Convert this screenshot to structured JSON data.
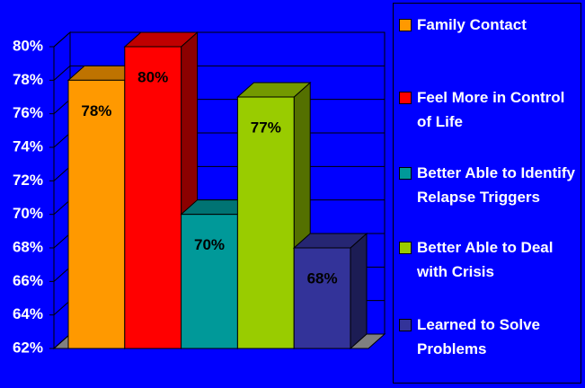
{
  "chart_data": {
    "type": "bar",
    "series": [
      {
        "name": "Family Contact",
        "color": "#ff9900",
        "values": [
          78
        ],
        "value_labels": [
          "78%"
        ]
      },
      {
        "name": "Feel More in Control of Life",
        "color": "#ff0000",
        "values": [
          80
        ],
        "value_labels": [
          "80%"
        ]
      },
      {
        "name": "Better Able to Identify Relapse Triggers",
        "color": "#009999",
        "values": [
          70
        ],
        "value_labels": [
          "70%"
        ]
      },
      {
        "name": "Better Able to Deal with Crisis",
        "color": "#99cc00",
        "values": [
          77
        ],
        "value_labels": [
          "77%"
        ]
      },
      {
        "name": "Learned to Solve Problems",
        "color": "#333399",
        "values": [
          68
        ],
        "value_labels": [
          "68%"
        ]
      }
    ],
    "ylim": [
      62,
      80
    ],
    "yticks": [
      {
        "value": 62,
        "label": "62%"
      },
      {
        "value": 64,
        "label": "64%"
      },
      {
        "value": 66,
        "label": "66%"
      },
      {
        "value": 68,
        "label": "68%"
      },
      {
        "value": 70,
        "label": "70%"
      },
      {
        "value": 72,
        "label": "72%"
      },
      {
        "value": 74,
        "label": "74%"
      },
      {
        "value": 76,
        "label": "76%"
      },
      {
        "value": 78,
        "label": "78%"
      },
      {
        "value": 80,
        "label": "80%"
      }
    ],
    "grid": true,
    "legend": "right"
  }
}
